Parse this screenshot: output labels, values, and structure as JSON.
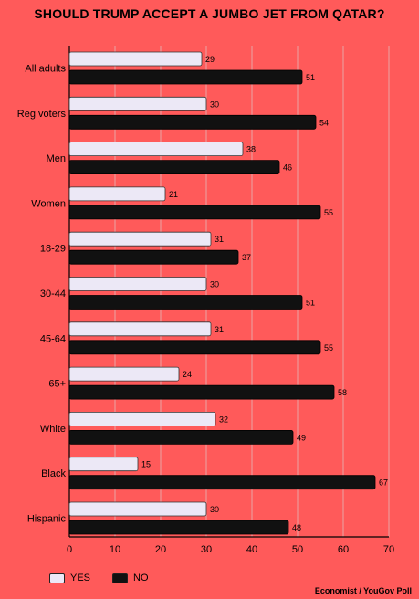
{
  "title": "SHOULD TRUMP ACCEPT A JUMBO JET FROM QATAR?",
  "source": "Economist / YouGov Poll",
  "legend": {
    "yes": "YES",
    "no": "NO"
  },
  "colors": {
    "background": "#ff5a5a",
    "yes": "#ece8f6",
    "no": "#111111",
    "grid": "#e8a4a4"
  },
  "chart_data": {
    "type": "bar",
    "orientation": "horizontal",
    "categories": [
      "All adults",
      "Reg voters",
      "Men",
      "Women",
      "18-29",
      "30-44",
      "45-64",
      "65+",
      "White",
      "Black",
      "Hispanic"
    ],
    "series": [
      {
        "name": "YES",
        "values": [
          29,
          30,
          38,
          21,
          31,
          30,
          31,
          24,
          32,
          15,
          30
        ]
      },
      {
        "name": "NO",
        "values": [
          51,
          54,
          46,
          55,
          37,
          51,
          55,
          58,
          49,
          67,
          48
        ]
      }
    ],
    "xlim": [
      0,
      70
    ],
    "xticks": [
      0,
      10,
      20,
      30,
      40,
      50,
      60,
      70
    ],
    "grid": true,
    "legend_position": "bottom-left",
    "data_labels": true
  }
}
